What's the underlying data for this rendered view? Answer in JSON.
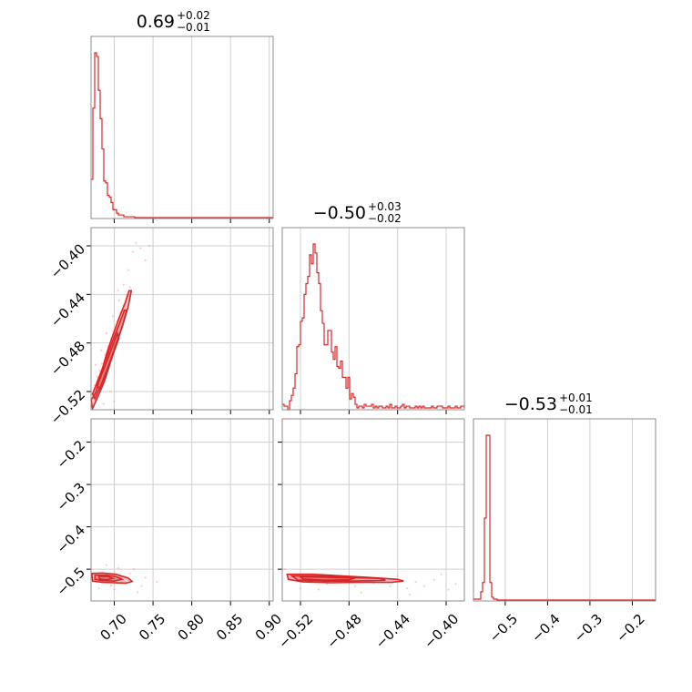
{
  "chart_data": {
    "type": "corner",
    "colors": {
      "series": "#d62728",
      "points": "#f3a7ac",
      "frame": "#8c8c8c",
      "grid": "#cfcfcf"
    },
    "params": [
      {
        "title_main": "0.69",
        "title_plus": "+0.02",
        "title_minus": "−0.01",
        "range": [
          0.67,
          0.905
        ],
        "ticks": [
          0.7,
          0.75,
          0.8,
          0.85,
          0.9
        ],
        "tick_labels": [
          "0.70",
          "0.75",
          "0.80",
          "0.85",
          "0.90"
        ]
      },
      {
        "title_main": "−0.50",
        "title_plus": "+0.03",
        "title_minus": "−0.02",
        "range": [
          -0.535,
          -0.385
        ],
        "ticks": [
          -0.52,
          -0.48,
          -0.44,
          -0.4
        ],
        "tick_labels": [
          "−0.52",
          "−0.48",
          "−0.44",
          "−0.40"
        ]
      },
      {
        "title_main": "−0.53",
        "title_plus": "+0.01",
        "title_minus": "−0.01",
        "range": [
          -0.575,
          -0.145
        ],
        "ticks": [
          -0.5,
          -0.4,
          -0.3,
          -0.2
        ],
        "tick_labels": [
          "−0.5",
          "−0.4",
          "−0.3",
          "−0.2"
        ]
      }
    ],
    "hist": [
      {
        "edges_from": 0.67,
        "bin_width": 0.00235,
        "counts": [
          0.22,
          0.62,
          0.93,
          0.91,
          0.72,
          0.56,
          0.39,
          0.21,
          0.2,
          0.13,
          0.12,
          0.09,
          0.05,
          0.05,
          0.03,
          0.02,
          0.02,
          0.02,
          0.01,
          0.01,
          0.01,
          0.01,
          0.01,
          0.01,
          0.005,
          0.005,
          0.005,
          0.005,
          0.005,
          0.005,
          0.005,
          0.005,
          0.005,
          0.005,
          0.005,
          0.005,
          0.005,
          0.005,
          0.005,
          0.005,
          0.005,
          0.005,
          0.005,
          0.005,
          0.005,
          0.005,
          0.005,
          0.005,
          0.005,
          0.005,
          0.005,
          0.005,
          0.005,
          0.005,
          0.005,
          0.005,
          0.005,
          0.005,
          0.005,
          0.005,
          0.005,
          0.005,
          0.005,
          0.005,
          0.005,
          0.005,
          0.005,
          0.005,
          0.005,
          0.005,
          0.005,
          0.005,
          0.005,
          0.005,
          0.005,
          0.005,
          0.005,
          0.005,
          0.005,
          0.005,
          0.005,
          0.005,
          0.005,
          0.005,
          0.005,
          0.005,
          0.005,
          0.005,
          0.005,
          0.005,
          0.005,
          0.005,
          0.005,
          0.005,
          0.005,
          0.005,
          0.005,
          0.005,
          0.005,
          0.005
        ]
      },
      {
        "edges_from": -0.535,
        "bin_width": 0.0015,
        "counts": [
          0.03,
          0.02,
          0.02,
          0.0,
          0.05,
          0.08,
          0.12,
          0.2,
          0.35,
          0.36,
          0.49,
          0.51,
          0.64,
          0.7,
          0.74,
          0.86,
          0.81,
          0.92,
          0.87,
          0.76,
          0.7,
          0.55,
          0.48,
          0.36,
          0.36,
          0.44,
          0.44,
          0.32,
          0.28,
          0.35,
          0.24,
          0.23,
          0.27,
          0.18,
          0.18,
          0.12,
          0.18,
          0.06,
          0.09,
          0.07,
          0.03,
          0.01,
          0.02,
          0.02,
          0.01,
          0.03,
          0.02,
          0.02,
          0.02,
          0.03,
          0.01,
          0.02,
          0.01,
          0.02,
          0.02,
          0.01,
          0.01,
          0.02,
          0.01,
          0.03,
          0.01,
          0.01,
          0.02,
          0.01,
          0.01,
          0.02,
          0.03,
          0.01,
          0.02,
          0.02,
          0.01,
          0.01,
          0.01,
          0.02,
          0.01,
          0.02,
          0.01,
          0.02,
          0.01,
          0.01,
          0.01,
          0.01,
          0.02,
          0.01,
          0.01,
          0.02,
          0.02,
          0.02,
          0.01,
          0.01,
          0.01,
          0.02,
          0.01,
          0.01,
          0.01,
          0.02,
          0.01,
          0.01,
          0.02,
          0.02,
          0.01
        ]
      },
      {
        "edges_from": -0.575,
        "bin_width": 0.0043,
        "counts": [
          0.01,
          0.01,
          0.01,
          0.01,
          0.05,
          0.1,
          0.45,
          0.9,
          0.9,
          0.1,
          0.02,
          0.01,
          0.01,
          0.005,
          0.005,
          0.005,
          0.005,
          0.005,
          0.005,
          0.005,
          0.005,
          0.005,
          0.005,
          0.005,
          0.005,
          0.005,
          0.005,
          0.005,
          0.005,
          0.005,
          0.005,
          0.005,
          0.005,
          0.005,
          0.005,
          0.005,
          0.005,
          0.005,
          0.005,
          0.005,
          0.005,
          0.005,
          0.005,
          0.005,
          0.005,
          0.005,
          0.005,
          0.005,
          0.005,
          0.005,
          0.005,
          0.005,
          0.005,
          0.005,
          0.005,
          0.005,
          0.005,
          0.005,
          0.005,
          0.005,
          0.005,
          0.005,
          0.005,
          0.005,
          0.005,
          0.005,
          0.005,
          0.005,
          0.005,
          0.005,
          0.005,
          0.005,
          0.005,
          0.005,
          0.005,
          0.005,
          0.005,
          0.005,
          0.005,
          0.005,
          0.005,
          0.005,
          0.005,
          0.005,
          0.005,
          0.005,
          0.005,
          0.005,
          0.005,
          0.005,
          0.005,
          0.005,
          0.005,
          0.005,
          0.005,
          0.005,
          0.005,
          0.005,
          0.005,
          0.005
        ]
      }
    ],
    "scatter": {
      "p1_vs_p0": [
        [
          0.672,
          -0.522
        ],
        [
          0.675,
          -0.515
        ],
        [
          0.678,
          -0.508
        ],
        [
          0.681,
          -0.503
        ],
        [
          0.684,
          -0.497
        ],
        [
          0.688,
          -0.49
        ],
        [
          0.692,
          -0.483
        ],
        [
          0.696,
          -0.476
        ],
        [
          0.7,
          -0.47
        ],
        [
          0.704,
          -0.462
        ],
        [
          0.708,
          -0.455
        ],
        [
          0.712,
          -0.449
        ],
        [
          0.716,
          -0.441
        ],
        [
          0.72,
          -0.434
        ],
        [
          0.712,
          -0.432
        ],
        [
          0.706,
          -0.445
        ],
        [
          0.698,
          -0.458
        ],
        [
          0.69,
          -0.472
        ],
        [
          0.683,
          -0.486
        ],
        [
          0.676,
          -0.498
        ],
        [
          0.724,
          -0.405
        ],
        [
          0.728,
          -0.398
        ],
        [
          0.734,
          -0.402
        ],
        [
          0.74,
          -0.412
        ],
        [
          0.745,
          -0.4
        ],
        [
          0.718,
          -0.42
        ],
        [
          0.705,
          -0.437
        ],
        [
          0.695,
          -0.52
        ],
        [
          0.7,
          -0.528
        ],
        [
          0.686,
          -0.53
        ]
      ],
      "p2_vs_p0": [
        [
          0.672,
          -0.51
        ],
        [
          0.678,
          -0.522
        ],
        [
          0.684,
          -0.531
        ],
        [
          0.69,
          -0.516
        ],
        [
          0.696,
          -0.539
        ],
        [
          0.702,
          -0.526
        ],
        [
          0.708,
          -0.519
        ],
        [
          0.714,
          -0.535
        ],
        [
          0.72,
          -0.51
        ],
        [
          0.69,
          -0.49
        ],
        [
          0.705,
          -0.498
        ],
        [
          0.725,
          -0.5
        ],
        [
          0.74,
          -0.52
        ],
        [
          0.735,
          -0.54
        ],
        [
          0.755,
          -0.53
        ],
        [
          0.7,
          -0.548
        ],
        [
          0.68,
          -0.545
        ],
        [
          0.73,
          -0.555
        ]
      ],
      "p2_vs_p1": [
        [
          -0.533,
          -0.5
        ],
        [
          -0.528,
          -0.52
        ],
        [
          -0.52,
          -0.525
        ],
        [
          -0.512,
          -0.53
        ],
        [
          -0.505,
          -0.518
        ],
        [
          -0.498,
          -0.535
        ],
        [
          -0.49,
          -0.522
        ],
        [
          -0.482,
          -0.528
        ],
        [
          -0.475,
          -0.54
        ],
        [
          -0.468,
          -0.52
        ],
        [
          -0.46,
          -0.532
        ],
        [
          -0.452,
          -0.526
        ],
        [
          -0.446,
          -0.54
        ],
        [
          -0.44,
          -0.515
        ],
        [
          -0.432,
          -0.545
        ],
        [
          -0.425,
          -0.53
        ],
        [
          -0.418,
          -0.54
        ],
        [
          -0.41,
          -0.525
        ],
        [
          -0.404,
          -0.512
        ],
        [
          -0.398,
          -0.548
        ],
        [
          -0.392,
          -0.535
        ],
        [
          -0.43,
          -0.56
        ],
        [
          -0.47,
          -0.555
        ],
        [
          -0.52,
          -0.545
        ],
        [
          -0.505,
          -0.548
        ]
      ]
    },
    "contours": {
      "p1_vs_p0": [
        [
          [
            0.67,
            -0.527
          ],
          [
            0.676,
            -0.521
          ],
          [
            0.683,
            -0.505
          ],
          [
            0.691,
            -0.487
          ],
          [
            0.699,
            -0.472
          ],
          [
            0.707,
            -0.458
          ],
          [
            0.714,
            -0.447
          ],
          [
            0.719,
            -0.437
          ],
          [
            0.722,
            -0.437
          ],
          [
            0.718,
            -0.45
          ],
          [
            0.711,
            -0.465
          ],
          [
            0.703,
            -0.48
          ],
          [
            0.695,
            -0.496
          ],
          [
            0.687,
            -0.512
          ],
          [
            0.679,
            -0.524
          ],
          [
            0.672,
            -0.534
          ]
        ],
        [
          [
            0.672,
            -0.522
          ],
          [
            0.681,
            -0.507
          ],
          [
            0.69,
            -0.492
          ],
          [
            0.698,
            -0.478
          ],
          [
            0.706,
            -0.465
          ],
          [
            0.713,
            -0.453
          ],
          [
            0.716,
            -0.453
          ],
          [
            0.71,
            -0.467
          ],
          [
            0.702,
            -0.482
          ],
          [
            0.693,
            -0.498
          ],
          [
            0.684,
            -0.513
          ],
          [
            0.675,
            -0.526
          ]
        ],
        [
          [
            0.678,
            -0.515
          ],
          [
            0.688,
            -0.499
          ],
          [
            0.697,
            -0.484
          ],
          [
            0.704,
            -0.472
          ],
          [
            0.706,
            -0.476
          ],
          [
            0.698,
            -0.49
          ],
          [
            0.689,
            -0.506
          ],
          [
            0.681,
            -0.518
          ]
        ]
      ],
      "p2_vs_p0": [
        [
          [
            0.671,
            -0.51
          ],
          [
            0.685,
            -0.509
          ],
          [
            0.702,
            -0.512
          ],
          [
            0.718,
            -0.521
          ],
          [
            0.723,
            -0.529
          ],
          [
            0.715,
            -0.533
          ],
          [
            0.7,
            -0.532
          ],
          [
            0.685,
            -0.531
          ],
          [
            0.672,
            -0.528
          ]
        ],
        [
          [
            0.675,
            -0.514
          ],
          [
            0.69,
            -0.514
          ],
          [
            0.703,
            -0.518
          ],
          [
            0.71,
            -0.524
          ],
          [
            0.7,
            -0.528
          ],
          [
            0.685,
            -0.527
          ],
          [
            0.675,
            -0.524
          ]
        ],
        [
          [
            0.68,
            -0.517
          ],
          [
            0.692,
            -0.517
          ],
          [
            0.698,
            -0.522
          ],
          [
            0.69,
            -0.525
          ],
          [
            0.681,
            -0.523
          ]
        ]
      ],
      "p2_vs_p1": [
        [
          [
            -0.531,
            -0.512
          ],
          [
            -0.51,
            -0.512
          ],
          [
            -0.485,
            -0.516
          ],
          [
            -0.46,
            -0.52
          ],
          [
            -0.44,
            -0.524
          ],
          [
            -0.435,
            -0.528
          ],
          [
            -0.445,
            -0.531
          ],
          [
            -0.47,
            -0.531
          ],
          [
            -0.495,
            -0.532
          ],
          [
            -0.518,
            -0.53
          ],
          [
            -0.53,
            -0.524
          ]
        ],
        [
          [
            -0.527,
            -0.516
          ],
          [
            -0.505,
            -0.516
          ],
          [
            -0.48,
            -0.519
          ],
          [
            -0.455,
            -0.522
          ],
          [
            -0.45,
            -0.526
          ],
          [
            -0.475,
            -0.528
          ],
          [
            -0.5,
            -0.528
          ],
          [
            -0.522,
            -0.526
          ]
        ],
        [
          [
            -0.52,
            -0.518
          ],
          [
            -0.498,
            -0.519
          ],
          [
            -0.475,
            -0.521
          ],
          [
            -0.48,
            -0.525
          ],
          [
            -0.502,
            -0.526
          ],
          [
            -0.518,
            -0.523
          ]
        ]
      ]
    }
  }
}
